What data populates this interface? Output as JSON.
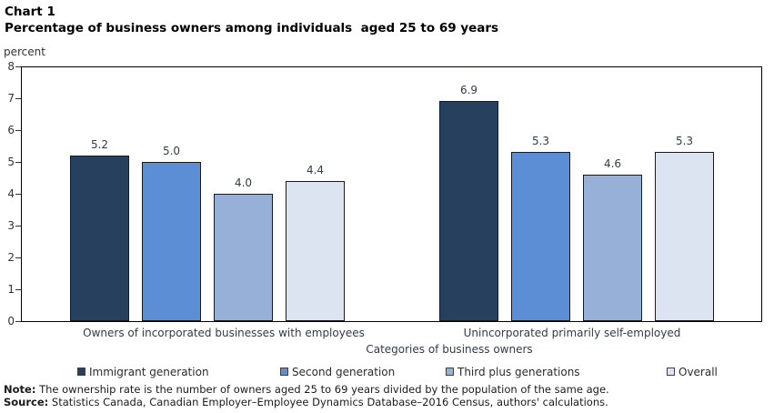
{
  "header": {
    "chart_label": "Chart 1",
    "title": "Percentage of business owners among individuals  aged 25 to 69 years"
  },
  "chart_data": {
    "type": "bar",
    "title": "Percentage of business owners among individuals aged 25 to 69 years",
    "unit_label": "percent",
    "xlabel": "Categories of business owners",
    "ylabel": "percent",
    "ylim": [
      0,
      8
    ],
    "yticks": [
      0,
      1,
      2,
      3,
      4,
      5,
      6,
      7,
      8
    ],
    "grid": false,
    "legend_position": "bottom",
    "categories": [
      "Owners of incorporated businesses with employees",
      "Unincorporated primarily self-employed"
    ],
    "series": [
      {
        "name": "Immigrant generation",
        "color": "#27405E",
        "values": [
          5.2,
          6.9
        ]
      },
      {
        "name": "Second generation",
        "color": "#5B8ED5",
        "values": [
          5.0,
          5.3
        ]
      },
      {
        "name": "Third plus generations",
        "color": "#96B0D7",
        "values": [
          4.0,
          4.6
        ]
      },
      {
        "name": "Overall",
        "color": "#DBE4F0",
        "values": [
          4.4,
          5.3
        ]
      }
    ]
  },
  "footnotes": {
    "note_label": "Note:",
    "note_text": "The ownership rate is the number of owners aged 25 to 69 years divided by the population of the same age.",
    "source_label": "Source:",
    "source_text": "Statistics Canada, Canadian Employer–Employee Dynamics Database–2016 Census, authors' calculations."
  }
}
